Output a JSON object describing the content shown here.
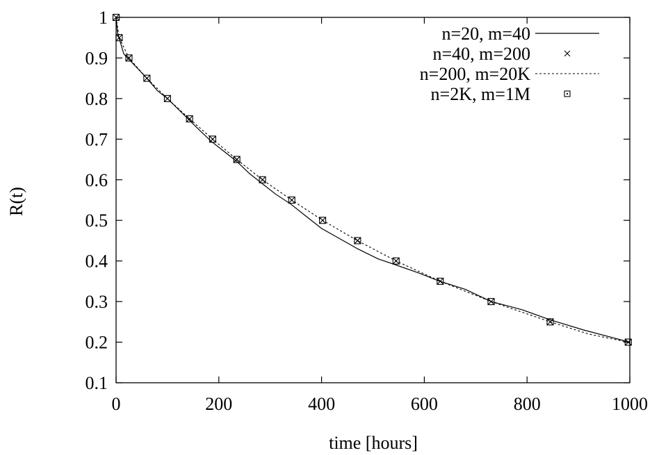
{
  "chart_data": {
    "type": "line",
    "xlabel": "time [hours]",
    "ylabel": "R(t)",
    "xlim": [
      0,
      1000
    ],
    "ylim": [
      0.1,
      1.0
    ],
    "xticks": [
      0,
      200,
      400,
      600,
      800,
      1000
    ],
    "yticks": [
      0.1,
      0.2,
      0.3,
      0.4,
      0.5,
      0.6,
      0.7,
      0.8,
      0.9,
      1.0
    ],
    "xtick_labels": [
      "0",
      "200",
      "400",
      "600",
      "800",
      "1000"
    ],
    "ytick_labels": [
      "0.1",
      "0.2",
      "0.3",
      "0.4",
      "0.5",
      "0.6",
      "0.7",
      "0.8",
      "0.9",
      "1"
    ],
    "grid": false,
    "legend_position": "top-right",
    "series": [
      {
        "name": "n=20, m=40",
        "style": "solid",
        "x": [
          0,
          3,
          8,
          15,
          22,
          30,
          45,
          60,
          80,
          100,
          120,
          140,
          160,
          185,
          210,
          235,
          260,
          285,
          310,
          340,
          370,
          400,
          435,
          470,
          510,
          545,
          590,
          630,
          680,
          730,
          790,
          845,
          910,
          1000
        ],
        "y": [
          1.0,
          0.96,
          0.94,
          0.91,
          0.9,
          0.89,
          0.87,
          0.85,
          0.82,
          0.8,
          0.775,
          0.75,
          0.725,
          0.695,
          0.67,
          0.645,
          0.615,
          0.59,
          0.565,
          0.54,
          0.51,
          0.48,
          0.455,
          0.43,
          0.405,
          0.39,
          0.37,
          0.35,
          0.33,
          0.3,
          0.28,
          0.255,
          0.23,
          0.2
        ]
      },
      {
        "name": "n=40, m=200",
        "style": "x-marker",
        "x": [
          0,
          6,
          25,
          60,
          100,
          143,
          188,
          235,
          285,
          342,
          402,
          470,
          545,
          631,
          730,
          845,
          997
        ],
        "y": [
          1.0,
          0.95,
          0.9,
          0.85,
          0.8,
          0.75,
          0.7,
          0.65,
          0.6,
          0.55,
          0.5,
          0.45,
          0.4,
          0.35,
          0.3,
          0.25,
          0.2
        ]
      },
      {
        "name": "n=200, m=20K",
        "style": "dotted",
        "x": [
          0,
          6,
          25,
          60,
          100,
          143,
          188,
          235,
          285,
          342,
          402,
          470,
          545,
          631,
          730,
          845,
          920,
          997
        ],
        "y": [
          1.0,
          0.95,
          0.9,
          0.85,
          0.8,
          0.75,
          0.7,
          0.65,
          0.6,
          0.55,
          0.5,
          0.45,
          0.4,
          0.35,
          0.3,
          0.25,
          0.22,
          0.2
        ]
      },
      {
        "name": "n=2K, m=1M",
        "style": "square-dot-marker",
        "x": [
          0,
          6,
          25,
          60,
          100,
          143,
          188,
          235,
          285,
          342,
          402,
          470,
          545,
          631,
          730,
          845,
          997
        ],
        "y": [
          1.0,
          0.95,
          0.9,
          0.85,
          0.8,
          0.75,
          0.7,
          0.65,
          0.6,
          0.55,
          0.5,
          0.45,
          0.4,
          0.35,
          0.3,
          0.25,
          0.2
        ]
      }
    ]
  }
}
